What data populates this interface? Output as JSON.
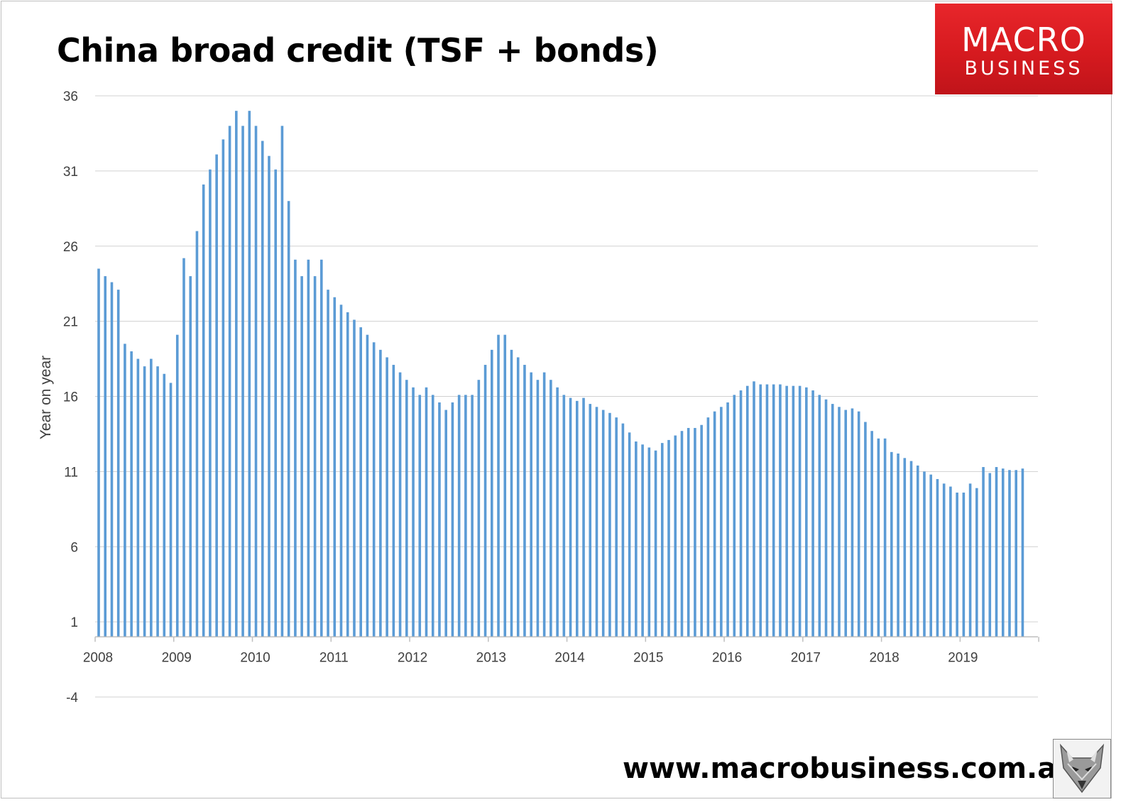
{
  "header": {
    "title": "China broad credit (TSF + bonds)"
  },
  "logo": {
    "line1": "MACRO",
    "line2": "BUSINESS",
    "icon": "fox-icon"
  },
  "footer": {
    "url": "www.macrobusiness.com.au"
  },
  "colors": {
    "bar": "#5b9bd5",
    "grid": "#d0d0d0",
    "axis": "#bfbfbf",
    "logo_red": "#d61a1f"
  },
  "chart_data": {
    "type": "bar",
    "title": "China broad credit (TSF + bonds)",
    "xlabel": "",
    "ylabel": "Year on year",
    "ylim": [
      -4,
      36
    ],
    "yticks": [
      -4,
      1,
      6,
      11,
      16,
      21,
      26,
      31,
      36
    ],
    "xticks": [
      "2008",
      "2009",
      "2010",
      "2011",
      "2012",
      "2013",
      "2014",
      "2015",
      "2016",
      "2017",
      "2018",
      "2019"
    ],
    "grid": true,
    "legend": "none",
    "start": "2008-01",
    "frequency": "monthly",
    "values": [
      24.5,
      24,
      23.6,
      23.1,
      19.5,
      19,
      18.5,
      18,
      18.5,
      18,
      17.5,
      16.9,
      20.1,
      25.2,
      24,
      27,
      30.1,
      31.1,
      32.1,
      33.1,
      34,
      35,
      34,
      35,
      34,
      33,
      32,
      31.1,
      34,
      29,
      25.1,
      24,
      25.1,
      24,
      25.1,
      23.1,
      22.6,
      22.1,
      21.6,
      21.1,
      20.6,
      20.1,
      19.6,
      19.1,
      18.6,
      18.1,
      17.6,
      17.1,
      16.6,
      16.1,
      16.6,
      16.1,
      15.6,
      15.1,
      15.6,
      16.1,
      16.1,
      16.1,
      17.1,
      18.1,
      19.1,
      20.1,
      20.1,
      19.1,
      18.6,
      18.1,
      17.6,
      17.1,
      17.6,
      17.1,
      16.6,
      16.1,
      15.9,
      15.7,
      15.9,
      15.5,
      15.3,
      15.1,
      14.9,
      14.6,
      14.2,
      13.6,
      13,
      12.8,
      12.6,
      12.4,
      12.9,
      13.1,
      13.4,
      13.7,
      13.9,
      13.9,
      14.1,
      14.6,
      15,
      15.3,
      15.6,
      16.1,
      16.4,
      16.7,
      17,
      16.8,
      16.8,
      16.8,
      16.8,
      16.7,
      16.7,
      16.7,
      16.6,
      16.4,
      16.1,
      15.8,
      15.5,
      15.3,
      15.1,
      15.2,
      15,
      14.3,
      13.7,
      13.2,
      13.2,
      12.3,
      12.2,
      11.9,
      11.7,
      11.4,
      11,
      10.8,
      10.5,
      10.2,
      10,
      9.6,
      9.6,
      10.2,
      9.9,
      11.3,
      10.9,
      11.3,
      11.2,
      11.1,
      11.1,
      11.2
    ]
  }
}
